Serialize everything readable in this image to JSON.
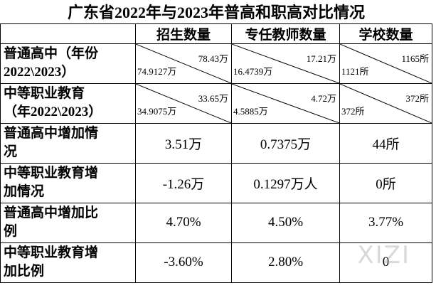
{
  "title": "广东省2022年与2023年普高和职高对比情况",
  "table": {
    "header": [
      "招生数量",
      "专任教师数量",
      "学校数量"
    ],
    "rows": [
      {
        "label": [
          "普通高中（年份",
          "2022\\2023）"
        ],
        "cells": [
          {
            "top": "78.43万",
            "bottom": "74.9127万"
          },
          {
            "top": "17.21万",
            "bottom": "16.4739万"
          },
          {
            "top": "1165所",
            "bottom": "1121所"
          }
        ]
      },
      {
        "label": [
          "中等职业教育",
          "（年2022\\2023）"
        ],
        "cells": [
          {
            "top": "33.65万",
            "bottom": "34.9075万"
          },
          {
            "top": "4.72万",
            "bottom": "4.5885万"
          },
          {
            "top": "372所",
            "bottom": "372所"
          }
        ]
      },
      {
        "label": [
          "普通高中增加情",
          "况"
        ],
        "cells": [
          "3.51万",
          "0.7375万",
          "44所"
        ]
      },
      {
        "label": [
          "中等职业教育增",
          "加情况"
        ],
        "cells": [
          "-1.26万",
          "0.1297万人",
          "0所"
        ]
      },
      {
        "label": [
          "普通高中增加比",
          "例"
        ],
        "cells": [
          "4.70%",
          "4.50%",
          "3.77%"
        ]
      },
      {
        "label": [
          "中等职业教育增",
          "加比例"
        ],
        "cells": [
          "-3.60%",
          "2.80%",
          "0"
        ]
      }
    ]
  },
  "watermark": "XIZI"
}
